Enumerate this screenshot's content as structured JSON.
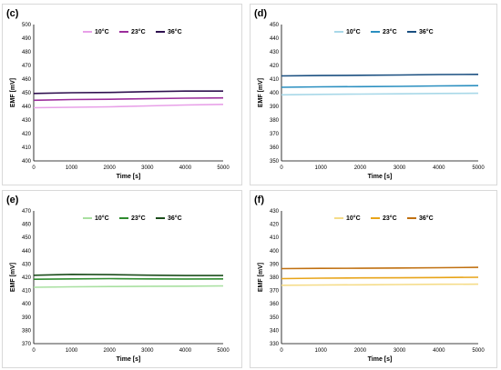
{
  "chart_data": [
    {
      "type": "line",
      "panel_label": "(c)",
      "xlabel": "Time [s]",
      "ylabel": "EMF [mV]",
      "xlim": [
        0,
        5000
      ],
      "ylim": [
        400,
        500
      ],
      "xticks": [
        0,
        1000,
        2000,
        3000,
        4000,
        5000
      ],
      "yticks": [
        400,
        410,
        420,
        430,
        440,
        450,
        460,
        470,
        480,
        490,
        500
      ],
      "legend_position": "top-center",
      "series": [
        {
          "name": "10°C",
          "color": "#e8a0e8",
          "x": [
            0,
            1000,
            2000,
            3000,
            4000,
            5000
          ],
          "y": [
            439,
            439.3,
            439.7,
            440.3,
            441,
            441.5
          ]
        },
        {
          "name": "23°C",
          "color": "#9b2d9b",
          "x": [
            0,
            1000,
            2000,
            3000,
            4000,
            5000
          ],
          "y": [
            444.5,
            445,
            445.2,
            445.6,
            446,
            446.2
          ]
        },
        {
          "name": "36°C",
          "color": "#2e0f4e",
          "x": [
            0,
            1000,
            2000,
            3000,
            4000,
            5000
          ],
          "y": [
            449.5,
            450,
            450.2,
            450.8,
            451.2,
            451.2
          ]
        }
      ]
    },
    {
      "type": "line",
      "panel_label": "(d)",
      "xlabel": "Time [s]",
      "ylabel": "EMF [mV]",
      "xlim": [
        0,
        5000
      ],
      "ylim": [
        350,
        450
      ],
      "xticks": [
        0,
        1000,
        2000,
        3000,
        4000,
        5000
      ],
      "yticks": [
        350,
        360,
        370,
        380,
        390,
        400,
        410,
        420,
        430,
        440,
        450
      ],
      "legend_position": "top-center",
      "series": [
        {
          "name": "10°C",
          "color": "#a8d8e8",
          "x": [
            0,
            1000,
            2000,
            3000,
            4000,
            5000
          ],
          "y": [
            398.5,
            398.8,
            399,
            399.2,
            399.5,
            399.6
          ]
        },
        {
          "name": "23°C",
          "color": "#2a8fc0",
          "x": [
            0,
            1000,
            2000,
            3000,
            4000,
            5000
          ],
          "y": [
            404,
            404.3,
            404.5,
            404.7,
            405,
            405.2
          ]
        },
        {
          "name": "36°C",
          "color": "#1a4f80",
          "x": [
            0,
            1000,
            2000,
            3000,
            4000,
            5000
          ],
          "y": [
            412.3,
            412.6,
            412.8,
            413,
            413.3,
            413.5
          ]
        }
      ]
    },
    {
      "type": "line",
      "panel_label": "(e)",
      "xlabel": "Time [s]",
      "ylabel": "EMF [mV]",
      "xlim": [
        0,
        5000
      ],
      "ylim": [
        370,
        470
      ],
      "xticks": [
        0,
        1000,
        2000,
        3000,
        4000,
        5000
      ],
      "yticks": [
        370,
        380,
        390,
        400,
        410,
        420,
        430,
        440,
        450,
        460,
        470
      ],
      "legend_position": "top-center",
      "series": [
        {
          "name": "10°C",
          "color": "#a8e0a0",
          "x": [
            0,
            1000,
            2000,
            3000,
            4000,
            5000
          ],
          "y": [
            412.5,
            412.8,
            413,
            413.2,
            413.3,
            413.5
          ]
        },
        {
          "name": "23°C",
          "color": "#2e8b2e",
          "x": [
            0,
            1000,
            2000,
            3000,
            4000,
            5000
          ],
          "y": [
            418.5,
            418.8,
            419,
            418.8,
            418.7,
            418.8
          ]
        },
        {
          "name": "36°C",
          "color": "#1b4d1b",
          "x": [
            0,
            1000,
            2000,
            3000,
            4000,
            5000
          ],
          "y": [
            421.5,
            422.2,
            422,
            421.6,
            421.3,
            421.3
          ]
        }
      ]
    },
    {
      "type": "line",
      "panel_label": "(f)",
      "xlabel": "Time [s]",
      "ylabel": "EMF [mV]",
      "xlim": [
        0,
        5000
      ],
      "ylim": [
        330,
        430
      ],
      "xticks": [
        0,
        1000,
        2000,
        3000,
        4000,
        5000
      ],
      "yticks": [
        330,
        340,
        350,
        360,
        370,
        380,
        390,
        400,
        410,
        420,
        430
      ],
      "legend_position": "top-center",
      "series": [
        {
          "name": "10°C",
          "color": "#f5dc88",
          "x": [
            0,
            1000,
            2000,
            3000,
            4000,
            5000
          ],
          "y": [
            374,
            374.2,
            374.3,
            374.5,
            374.7,
            374.8
          ]
        },
        {
          "name": "23°C",
          "color": "#e8a418",
          "x": [
            0,
            1000,
            2000,
            3000,
            4000,
            5000
          ],
          "y": [
            379,
            379.3,
            379.5,
            379.6,
            379.8,
            380
          ]
        },
        {
          "name": "36°C",
          "color": "#c07010",
          "x": [
            0,
            1000,
            2000,
            3000,
            4000,
            5000
          ],
          "y": [
            386.5,
            386.7,
            386.8,
            387,
            387.2,
            387.5
          ]
        }
      ]
    }
  ]
}
